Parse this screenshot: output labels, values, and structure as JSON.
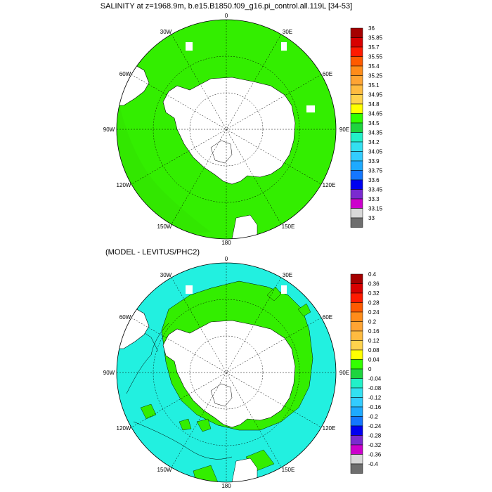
{
  "panels": [
    {
      "title": "SALINITY at z=1968.9m, b.e15.B1850.f09_g16.pi_control.all.119L [34-53]",
      "map": {
        "projection": "south-polar-stereographic",
        "longitude_labels": [
          "0",
          "30E",
          "60E",
          "90E",
          "120E",
          "150E",
          "180",
          "150W",
          "120W",
          "90W",
          "60W",
          "30W"
        ],
        "field_note": "uniform ~34.7-34.8 (green) across the Southern Ocean, thin 34.65-34.8 band along western rim"
      },
      "colorbar": {
        "labels": [
          "36",
          "35.85",
          "35.7",
          "35.55",
          "35.4",
          "35.25",
          "35.1",
          "34.95",
          "34.8",
          "34.65",
          "34.5",
          "34.35",
          "34.2",
          "34.05",
          "33.9",
          "33.75",
          "33.6",
          "33.45",
          "33.3",
          "33.15",
          "33"
        ],
        "colors": [
          "#a50000",
          "#d80000",
          "#ff1a00",
          "#ff5a00",
          "#ff8c1a",
          "#ffa433",
          "#ffbb40",
          "#ffd24d",
          "#ffff00",
          "#33ff00",
          "#1ed43e",
          "#22f0c8",
          "#33e0f0",
          "#33ccff",
          "#1eaaff",
          "#1477ff",
          "#0000f0",
          "#7a2ad0",
          "#cc00cc",
          "#d8d8d8",
          "#6e6e6e"
        ]
      }
    },
    {
      "title": "(MODEL - LEVITUS/PHC2)",
      "map": {
        "projection": "south-polar-stereographic",
        "longitude_labels": [
          "0",
          "30E",
          "60E",
          "90E",
          "120E",
          "150E",
          "180",
          "150W",
          "120W",
          "90W",
          "60W",
          "30W"
        ],
        "field_note": "cyan (-0.04..0) over most of ocean, green (0..0.08) ring around Antarctica"
      },
      "colorbar": {
        "labels": [
          "0.4",
          "0.36",
          "0.32",
          "0.28",
          "0.24",
          "0.2",
          "0.16",
          "0.12",
          "0.08",
          "0.04",
          "0",
          "-0.04",
          "-0.08",
          "-0.12",
          "-0.16",
          "-0.2",
          "-0.24",
          "-0.28",
          "-0.32",
          "-0.36",
          "-0.4"
        ],
        "colors": [
          "#a50000",
          "#d80000",
          "#ff1a00",
          "#ff5a00",
          "#ff8c1a",
          "#ffa433",
          "#ffbb40",
          "#ffd24d",
          "#ffff00",
          "#33ff00",
          "#1ed43e",
          "#22f0c8",
          "#33e0f0",
          "#33ccff",
          "#1eaaff",
          "#1477ff",
          "#0000f0",
          "#7a2ad0",
          "#cc00cc",
          "#d8d8d8",
          "#6e6e6e"
        ]
      }
    }
  ],
  "colors": {
    "ocean_top": "#33ee00",
    "ocean_bottom_cyan": "#22f0e0",
    "ocean_bottom_green": "#33ee00",
    "land": "#ffffff",
    "outline": "#000000"
  }
}
